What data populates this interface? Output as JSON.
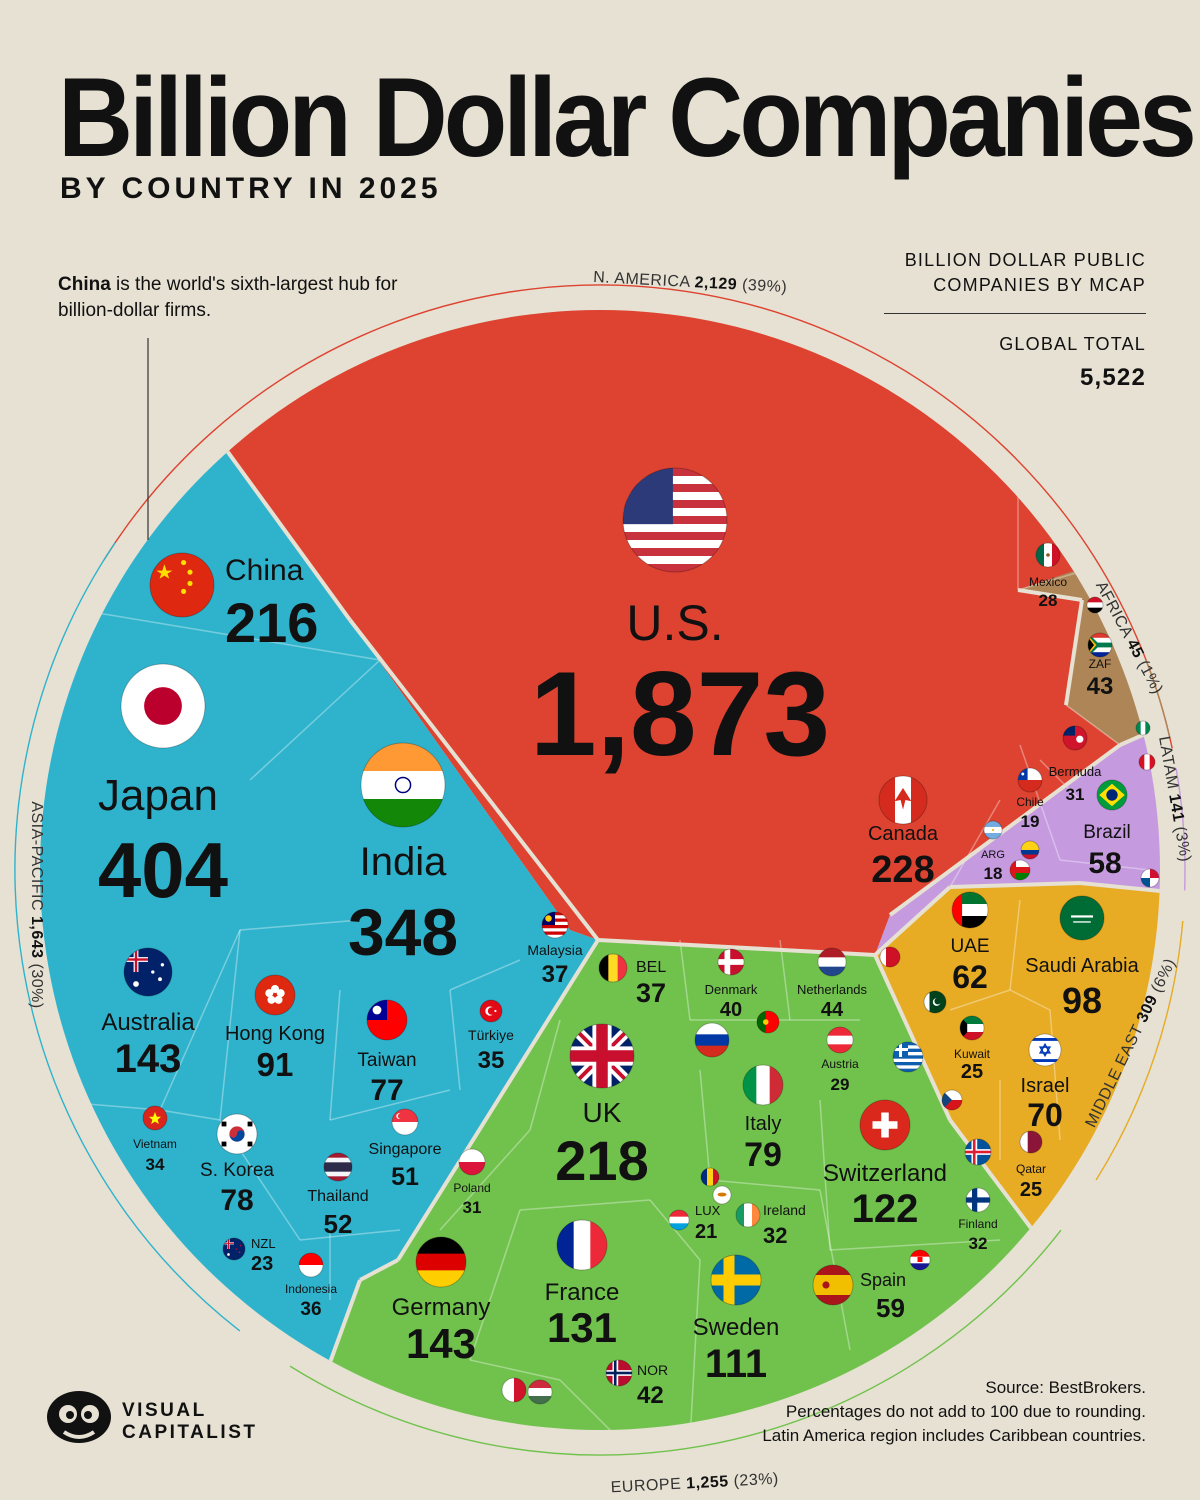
{
  "header": {
    "title": "Billion Dollar Companies",
    "subtitle": "BY COUNTRY IN 2025"
  },
  "callout": {
    "bold": "China",
    "text": " is the world's sixth-largest hub for billion-dollar firms."
  },
  "metric": {
    "label_line1": "BILLION DOLLAR PUBLIC",
    "label_line2": "COMPANIES BY MCAP",
    "total_label": "GLOBAL TOTAL",
    "total_value": "5,522"
  },
  "footer": {
    "source": "Source: BestBrokers.",
    "note1": "Percentages do not add to 100 due to rounding.",
    "note2": "Latin America region includes Caribbean countries.",
    "logo_line1": "VISUAL",
    "logo_line2": "CAPITALIST"
  },
  "chart_data": {
    "type": "voronoi-treemap",
    "title": "Billion Dollar Companies",
    "subtitle": "BY COUNTRY IN 2025",
    "total": 5522,
    "colors": {
      "n_america": "#dd4330",
      "asia_pacific": "#2fb3cd",
      "europe": "#71c24d",
      "middle_east": "#e7ab24",
      "latam": "#c59adf",
      "africa": "#ae8556",
      "background": "#e6e1d3"
    },
    "regions": [
      {
        "key": "n_america",
        "name": "N. AMERICA",
        "value": "2,129",
        "pct": "(39%)"
      },
      {
        "key": "africa",
        "name": "AFRICA",
        "value": "45",
        "pct": "(1%)"
      },
      {
        "key": "latam",
        "name": "LATAM",
        "value": "141",
        "pct": "(3%)"
      },
      {
        "key": "middle_east",
        "name": "MIDDLE EAST",
        "value": "309",
        "pct": "(6%)"
      },
      {
        "key": "europe",
        "name": "EUROPE",
        "value": "1,255",
        "pct": "(23%)"
      },
      {
        "key": "asia_pacific",
        "name": "ASIA-PACIFIC",
        "value": "1,643",
        "pct": "(30%)"
      }
    ],
    "countries": [
      {
        "name": "U.S.",
        "value": 1873,
        "region": "n_america",
        "flag": "us"
      },
      {
        "name": "Canada",
        "value": 228,
        "region": "n_america",
        "flag": "ca"
      },
      {
        "name": "Mexico",
        "value": 28,
        "region": "n_america",
        "flag": "mx"
      },
      {
        "name": "ZAF",
        "value": 43,
        "region": "africa",
        "flag": "za"
      },
      {
        "name": "Bermuda",
        "value": 31,
        "region": "latam",
        "flag": "bm"
      },
      {
        "name": "Chile",
        "value": 19,
        "region": "latam",
        "flag": "cl"
      },
      {
        "name": "Brazil",
        "value": 58,
        "region": "latam",
        "flag": "br"
      },
      {
        "name": "ARG",
        "value": 18,
        "region": "latam",
        "flag": "ar"
      },
      {
        "name": "UAE",
        "value": 62,
        "region": "middle_east",
        "flag": "ae"
      },
      {
        "name": "Saudi Arabia",
        "value": 98,
        "region": "middle_east",
        "flag": "sa"
      },
      {
        "name": "Kuwait",
        "value": 25,
        "region": "middle_east",
        "flag": "kw"
      },
      {
        "name": "Israel",
        "value": 70,
        "region": "middle_east",
        "flag": "il"
      },
      {
        "name": "Qatar",
        "value": 25,
        "region": "middle_east",
        "flag": "qa"
      },
      {
        "name": "UK",
        "value": 218,
        "region": "europe",
        "flag": "gb"
      },
      {
        "name": "BEL",
        "value": 37,
        "region": "europe",
        "flag": "be"
      },
      {
        "name": "Denmark",
        "value": 40,
        "region": "europe",
        "flag": "dk"
      },
      {
        "name": "Netherlands",
        "value": 44,
        "region": "europe",
        "flag": "nl"
      },
      {
        "name": "Austria",
        "value": 29,
        "region": "europe",
        "flag": "at"
      },
      {
        "name": "Italy",
        "value": 79,
        "region": "europe",
        "flag": "it"
      },
      {
        "name": "Switzerland",
        "value": 122,
        "region": "europe",
        "flag": "ch"
      },
      {
        "name": "Poland",
        "value": 31,
        "region": "europe",
        "flag": "pl"
      },
      {
        "name": "LUX",
        "value": 21,
        "region": "europe",
        "flag": "lu"
      },
      {
        "name": "Ireland",
        "value": 32,
        "region": "europe",
        "flag": "ie"
      },
      {
        "name": "Finland",
        "value": 32,
        "region": "europe",
        "flag": "fi"
      },
      {
        "name": "Germany",
        "value": 143,
        "region": "europe",
        "flag": "de"
      },
      {
        "name": "France",
        "value": 131,
        "region": "europe",
        "flag": "fr"
      },
      {
        "name": "Sweden",
        "value": 111,
        "region": "europe",
        "flag": "se"
      },
      {
        "name": "Spain",
        "value": 59,
        "region": "europe",
        "flag": "es"
      },
      {
        "name": "NOR",
        "value": 42,
        "region": "europe",
        "flag": "no"
      },
      {
        "name": "China",
        "value": 216,
        "region": "asia_pacific",
        "flag": "cn"
      },
      {
        "name": "Japan",
        "value": 404,
        "region": "asia_pacific",
        "flag": "jp"
      },
      {
        "name": "India",
        "value": 348,
        "region": "asia_pacific",
        "flag": "in"
      },
      {
        "name": "Australia",
        "value": 143,
        "region": "asia_pacific",
        "flag": "au"
      },
      {
        "name": "Hong Kong",
        "value": 91,
        "region": "asia_pacific",
        "flag": "hk"
      },
      {
        "name": "Taiwan",
        "value": 77,
        "region": "asia_pacific",
        "flag": "tw"
      },
      {
        "name": "Malaysia",
        "value": 37,
        "region": "asia_pacific",
        "flag": "my"
      },
      {
        "name": "Türkiye",
        "value": 35,
        "region": "asia_pacific",
        "flag": "tr"
      },
      {
        "name": "Vietnam",
        "value": 34,
        "region": "asia_pacific",
        "flag": "vn"
      },
      {
        "name": "S. Korea",
        "value": 78,
        "region": "asia_pacific",
        "flag": "kr"
      },
      {
        "name": "Singapore",
        "value": 51,
        "region": "asia_pacific",
        "flag": "sg"
      },
      {
        "name": "Thailand",
        "value": 52,
        "region": "asia_pacific",
        "flag": "th"
      },
      {
        "name": "NZL",
        "value": 23,
        "region": "asia_pacific",
        "flag": "nz"
      },
      {
        "name": "Indonesia",
        "value": 36,
        "region": "asia_pacific",
        "flag": "id"
      }
    ],
    "unlabeled_flags": [
      "eg",
      "pe",
      "ng",
      "ru",
      "pt",
      "gr",
      "cz",
      "is",
      "hr",
      "cy",
      "ro",
      "mt",
      "hu",
      "pk",
      "bh",
      "om",
      "pa",
      "co"
    ]
  }
}
